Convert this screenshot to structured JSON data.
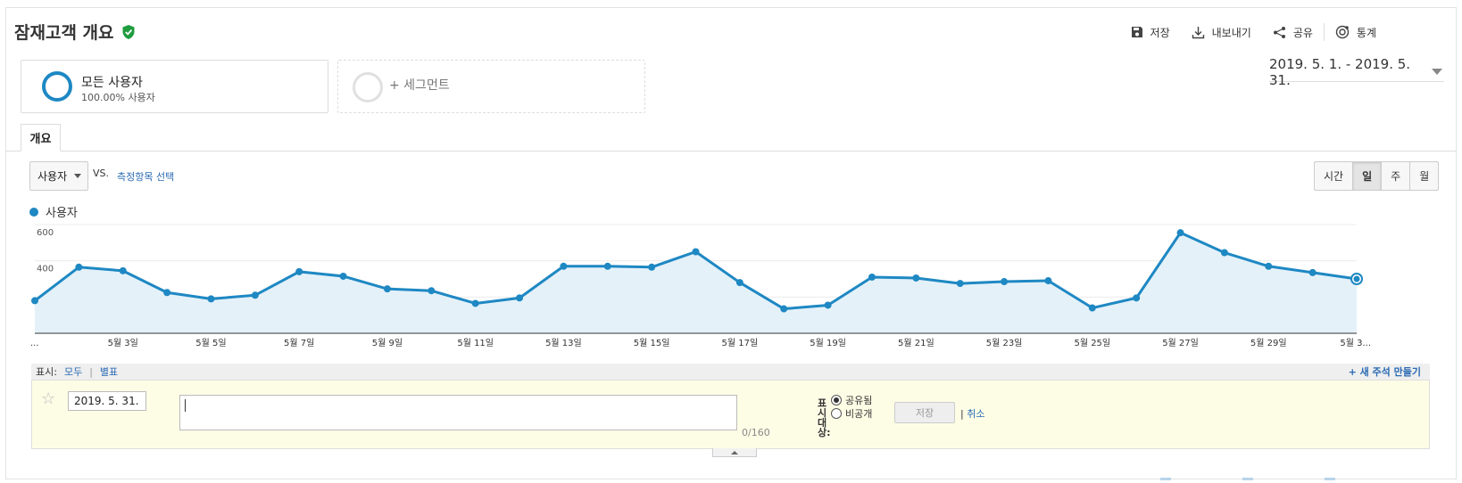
{
  "header": {
    "title": "잠재고객 개요",
    "toolbar": [
      {
        "label": "저장",
        "icon": "save-icon"
      },
      {
        "label": "내보내기",
        "icon": "download-icon"
      },
      {
        "label": "공유",
        "icon": "share-icon"
      },
      {
        "label": "통계",
        "icon": "insights-icon"
      }
    ]
  },
  "segments": {
    "active": {
      "title": "모든 사용자",
      "subtitle": "100.00% 사용자"
    },
    "add_label": "+ 세그먼트"
  },
  "date_range": "2019. 5. 1. - 2019. 5. 31.",
  "tabs": [
    {
      "label": "개요"
    }
  ],
  "metric": {
    "select": "사용자",
    "vs": "VS.",
    "select_link": "측정항목 선택"
  },
  "periods": [
    "시간",
    "일",
    "주",
    "월"
  ],
  "active_period": "일",
  "colors": {
    "series": "#1e88c3",
    "fill": "#e4f1f9"
  },
  "chart_data": {
    "type": "area",
    "series": [
      {
        "name": "사용자",
        "values": [
          180,
          365,
          345,
          225,
          190,
          210,
          340,
          315,
          245,
          235,
          165,
          195,
          370,
          370,
          365,
          450,
          280,
          135,
          155,
          310,
          305,
          275,
          285,
          290,
          140,
          195,
          555,
          445,
          370,
          335,
          300
        ]
      }
    ],
    "x": [
      "2019-05-01",
      "2019-05-02",
      "2019-05-03",
      "2019-05-04",
      "2019-05-05",
      "2019-05-06",
      "2019-05-07",
      "2019-05-08",
      "2019-05-09",
      "2019-05-10",
      "2019-05-11",
      "2019-05-12",
      "2019-05-13",
      "2019-05-14",
      "2019-05-15",
      "2019-05-16",
      "2019-05-17",
      "2019-05-18",
      "2019-05-19",
      "2019-05-20",
      "2019-05-21",
      "2019-05-22",
      "2019-05-23",
      "2019-05-24",
      "2019-05-25",
      "2019-05-26",
      "2019-05-27",
      "2019-05-28",
      "2019-05-29",
      "2019-05-30",
      "2019-05-31"
    ],
    "x_tick_labels": [
      "...",
      "5월 3일",
      "5월 5일",
      "5월 7일",
      "5월 9일",
      "5월 11일",
      "5월 13일",
      "5월 15일",
      "5월 17일",
      "5월 19일",
      "5월 21일",
      "5월 23일",
      "5월 25일",
      "5월 27일",
      "5월 29일",
      "5월 3..."
    ],
    "y_ticks": [
      200,
      400,
      600
    ],
    "ylim": [
      0,
      600
    ],
    "grid": true,
    "legend": "top-left"
  },
  "annotations": {
    "show_label": "표시:",
    "all": "모두",
    "starred": "별표",
    "new_label": "+ 새 주석 만들기",
    "date_value": "2019. 5. 31.",
    "counter": "0/160",
    "visibility_label": "표시대상:",
    "shared": "공유됨",
    "private": "비공개",
    "save": "저장",
    "cancel": "취소"
  }
}
